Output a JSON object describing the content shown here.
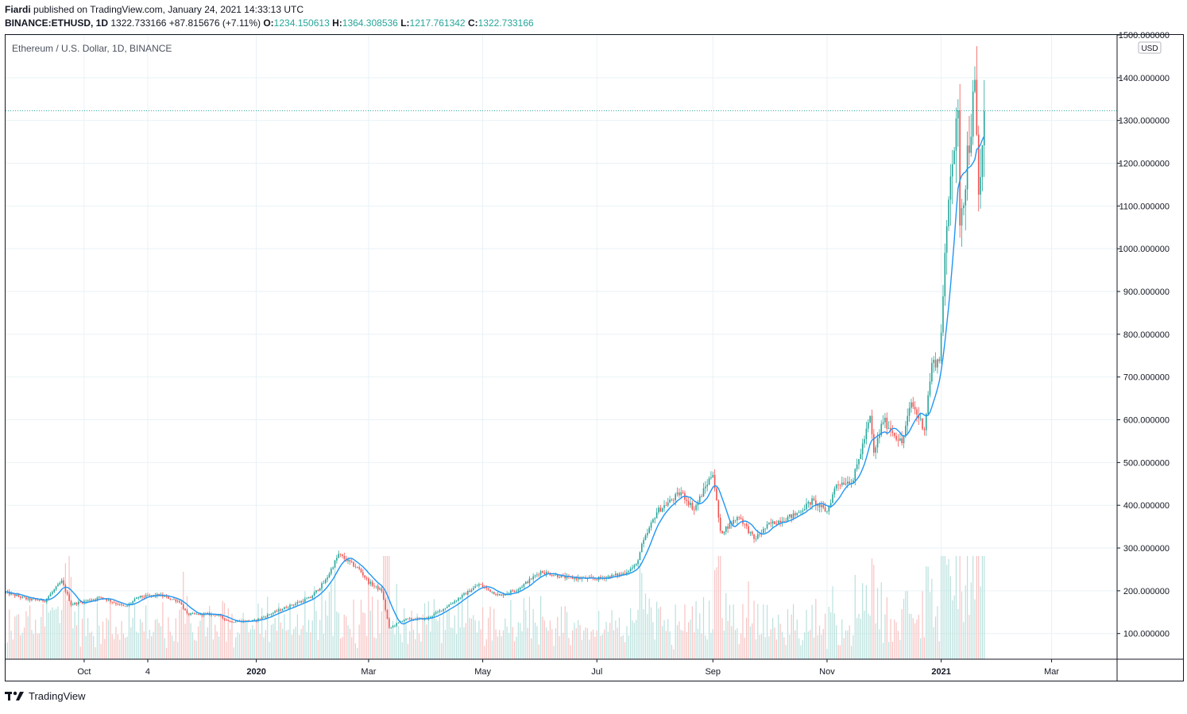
{
  "header": {
    "author": "Fiardi",
    "published": "published on TradingView.com, January 24, 2021 14:33:13 UTC",
    "symbol": "BINANCE:ETHUSD, 1D",
    "last": "1322.733166",
    "change": "+87.815676 (+7.11%)",
    "o_label": "O:",
    "o": "1234.150613",
    "h_label": "H:",
    "h": "1364.308536",
    "l_label": "L:",
    "l": "1217.761342",
    "c_label": "C:",
    "c": "1322.733166"
  },
  "footer": {
    "brand": "TradingView"
  },
  "colors": {
    "up": "#26a69a",
    "down": "#ef5350",
    "ma": "#2196f3",
    "grid": "#e9f2f6",
    "axis": "#131722"
  },
  "chart_data": {
    "type": "candlestick",
    "title": "Ethereum / U.S. Dollar, 1D, BINANCE",
    "currency": "USD",
    "ylim": [
      40,
      1500
    ],
    "yticks": [
      {
        "value": 100,
        "label": "100.000000"
      },
      {
        "value": 200,
        "label": "200.000000"
      },
      {
        "value": 300,
        "label": "300.000000"
      },
      {
        "value": 400,
        "label": "400.000000"
      },
      {
        "value": 500,
        "label": "500.000000"
      },
      {
        "value": 600,
        "label": "600.000000"
      },
      {
        "value": 700,
        "label": "700.000000"
      },
      {
        "value": 800,
        "label": "800.000000"
      },
      {
        "value": 900,
        "label": "900.000000"
      },
      {
        "value": 1000,
        "label": "1000.000000"
      },
      {
        "value": 1100,
        "label": "1100.000000"
      },
      {
        "value": 1200,
        "label": "1200.000000"
      },
      {
        "value": 1300,
        "label": "1300.000000"
      },
      {
        "value": 1400,
        "label": "1400.000000"
      },
      {
        "value": 1500,
        "label": "1500.000000"
      }
    ],
    "xrange": [
      "2019-08-20",
      "2021-04-05"
    ],
    "xticks": [
      {
        "date": "2019-10-01",
        "label": "Oct",
        "bold": false
      },
      {
        "date": "2019-11-04",
        "label": "4",
        "bold": false
      },
      {
        "date": "2020-01-01",
        "label": "2020",
        "bold": true
      },
      {
        "date": "2020-03-01",
        "label": "Mar",
        "bold": false
      },
      {
        "date": "2020-05-01",
        "label": "May",
        "bold": false
      },
      {
        "date": "2020-07-01",
        "label": "Jul",
        "bold": false
      },
      {
        "date": "2020-09-01",
        "label": "Sep",
        "bold": false
      },
      {
        "date": "2020-11-01",
        "label": "Nov",
        "bold": false
      },
      {
        "date": "2021-01-01",
        "label": "2021",
        "bold": true
      },
      {
        "date": "2021-03-01",
        "label": "Mar",
        "bold": false
      }
    ],
    "last_price": 1322.733166,
    "close_series": [
      {
        "date": "2019-08-20",
        "close": 196
      },
      {
        "date": "2019-09-01",
        "close": 180
      },
      {
        "date": "2019-09-10",
        "close": 177
      },
      {
        "date": "2019-09-19",
        "close": 222
      },
      {
        "date": "2019-09-24",
        "close": 168
      },
      {
        "date": "2019-10-10",
        "close": 185
      },
      {
        "date": "2019-10-23",
        "close": 162
      },
      {
        "date": "2019-10-30",
        "close": 185
      },
      {
        "date": "2019-11-10",
        "close": 190
      },
      {
        "date": "2019-11-21",
        "close": 175
      },
      {
        "date": "2019-11-25",
        "close": 145
      },
      {
        "date": "2019-12-10",
        "close": 145
      },
      {
        "date": "2019-12-18",
        "close": 128
      },
      {
        "date": "2019-12-31",
        "close": 130
      },
      {
        "date": "2020-01-08",
        "close": 145
      },
      {
        "date": "2020-01-20",
        "close": 167
      },
      {
        "date": "2020-01-30",
        "close": 184
      },
      {
        "date": "2020-02-07",
        "close": 224
      },
      {
        "date": "2020-02-14",
        "close": 285
      },
      {
        "date": "2020-02-25",
        "close": 250
      },
      {
        "date": "2020-03-01",
        "close": 220
      },
      {
        "date": "2020-03-08",
        "close": 200
      },
      {
        "date": "2020-03-12",
        "close": 112
      },
      {
        "date": "2020-03-20",
        "close": 133
      },
      {
        "date": "2020-04-01",
        "close": 135
      },
      {
        "date": "2020-04-10",
        "close": 158
      },
      {
        "date": "2020-04-29",
        "close": 215
      },
      {
        "date": "2020-05-10",
        "close": 188
      },
      {
        "date": "2020-05-20",
        "close": 205
      },
      {
        "date": "2020-06-01",
        "close": 245
      },
      {
        "date": "2020-06-15",
        "close": 230
      },
      {
        "date": "2020-07-01",
        "close": 228
      },
      {
        "date": "2020-07-15",
        "close": 240
      },
      {
        "date": "2020-07-22",
        "close": 260
      },
      {
        "date": "2020-07-25",
        "close": 305
      },
      {
        "date": "2020-08-02",
        "close": 385
      },
      {
        "date": "2020-08-15",
        "close": 430
      },
      {
        "date": "2020-08-22",
        "close": 390
      },
      {
        "date": "2020-09-01",
        "close": 478
      },
      {
        "date": "2020-09-05",
        "close": 335
      },
      {
        "date": "2020-09-15",
        "close": 375
      },
      {
        "date": "2020-09-23",
        "close": 320
      },
      {
        "date": "2020-10-01",
        "close": 355
      },
      {
        "date": "2020-10-15",
        "close": 378
      },
      {
        "date": "2020-10-24",
        "close": 410
      },
      {
        "date": "2020-11-01",
        "close": 385
      },
      {
        "date": "2020-11-06",
        "close": 450
      },
      {
        "date": "2020-11-15",
        "close": 460
      },
      {
        "date": "2020-11-24",
        "close": 605
      },
      {
        "date": "2020-11-26",
        "close": 520
      },
      {
        "date": "2020-12-01",
        "close": 600
      },
      {
        "date": "2020-12-11",
        "close": 545
      },
      {
        "date": "2020-12-16",
        "close": 640
      },
      {
        "date": "2020-12-23",
        "close": 580
      },
      {
        "date": "2020-12-27",
        "close": 730
      },
      {
        "date": "2020-12-31",
        "close": 740
      },
      {
        "date": "2021-01-03",
        "close": 960
      },
      {
        "date": "2021-01-06",
        "close": 1200
      },
      {
        "date": "2021-01-10",
        "close": 1290
      },
      {
        "date": "2021-01-11",
        "close": 1080
      },
      {
        "date": "2021-01-13",
        "close": 1130
      },
      {
        "date": "2021-01-15",
        "close": 1220
      },
      {
        "date": "2021-01-19",
        "close": 1370
      },
      {
        "date": "2021-01-21",
        "close": 1120
      },
      {
        "date": "2021-01-23",
        "close": 1234
      },
      {
        "date": "2021-01-24",
        "close": 1322
      }
    ]
  }
}
